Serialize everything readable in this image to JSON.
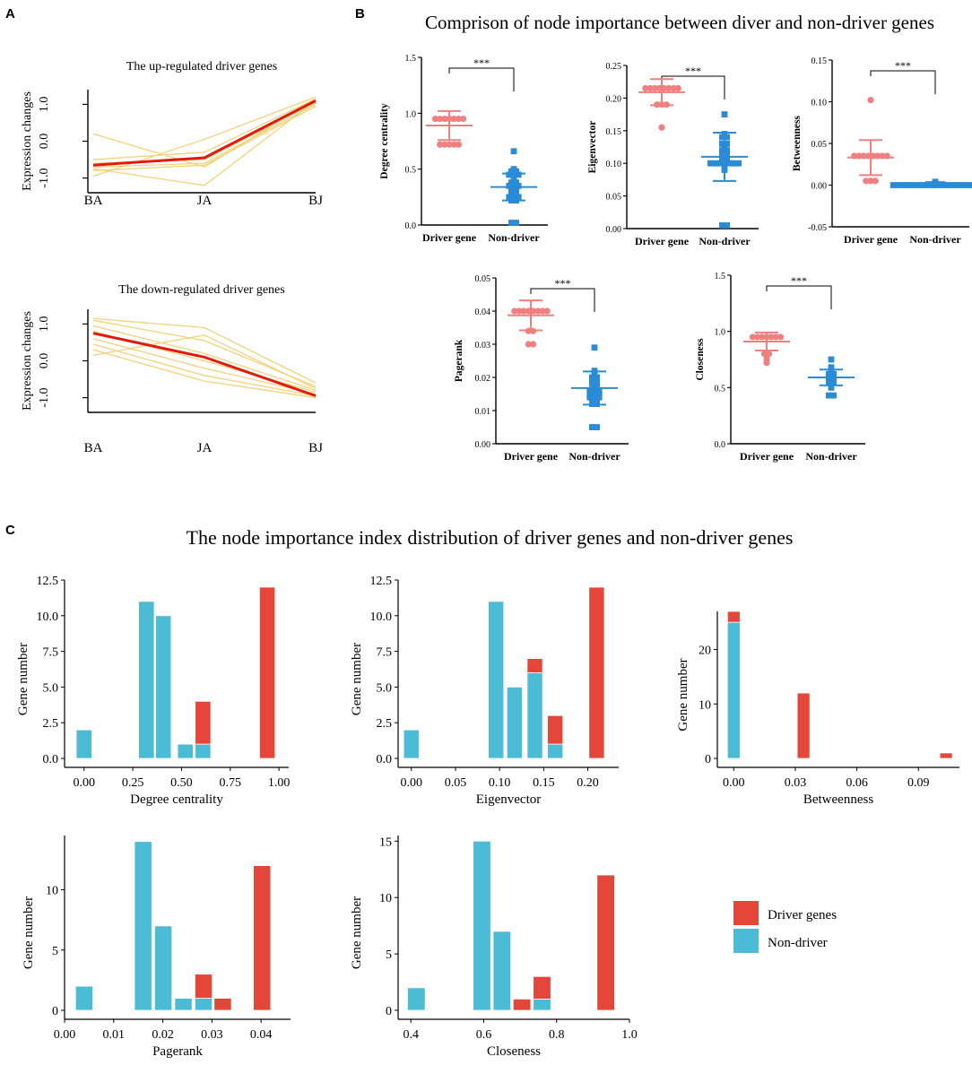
{
  "panels": {
    "A": {
      "letter": "A",
      "charts": [
        {
          "title": "The up-regulated driver genes",
          "ylabel": "Expression changes",
          "categories": [
            "BA",
            "JA",
            "BJ"
          ],
          "yticks": [
            -1.0,
            0.0,
            1.0
          ],
          "ytick_labels": [
            "-1.0",
            "0.0",
            "1.0"
          ],
          "ylim": [
            -1.4,
            1.4
          ],
          "mean": [
            -0.65,
            -0.45,
            1.1
          ],
          "genes": [
            [
              0.2,
              -0.7,
              1.15
            ],
            [
              -0.5,
              -0.3,
              1.15
            ],
            [
              -0.6,
              -0.5,
              1.05
            ],
            [
              -0.7,
              -0.6,
              1.0
            ],
            [
              -0.8,
              -0.65,
              0.95
            ],
            [
              -0.95,
              0.05,
              1.2
            ],
            [
              -0.75,
              -1.2,
              1.1
            ]
          ]
        },
        {
          "title": "The down-regulated driver genes",
          "ylabel": "Expression changes",
          "categories": [
            "BA",
            "JA",
            "BJ"
          ],
          "yticks": [
            -1.0,
            0.0,
            1.0
          ],
          "ytick_labels": [
            "-1.0",
            "0.0",
            "1.0"
          ],
          "ylim": [
            -1.4,
            1.4
          ],
          "mean": [
            0.75,
            0.1,
            -0.95
          ],
          "genes": [
            [
              1.15,
              0.9,
              -0.6
            ],
            [
              1.1,
              0.55,
              -0.7
            ],
            [
              0.95,
              0.2,
              -0.8
            ],
            [
              0.8,
              0.0,
              -0.85
            ],
            [
              0.6,
              -0.2,
              -0.9
            ],
            [
              0.45,
              -0.4,
              -0.95
            ],
            [
              0.3,
              -0.55,
              -1.0
            ],
            [
              0.15,
              0.7,
              -0.75
            ]
          ]
        }
      ]
    },
    "B": {
      "letter": "B",
      "title": "Comprison of node importance between diver and non-driver genes",
      "groups": [
        "Driver gene",
        "Non-driver"
      ],
      "signif": "***",
      "colors": {
        "driver": "#f08080",
        "nondriver": "#2a8bd6"
      },
      "plots": [
        {
          "ylabel": "Degree centrality",
          "ylim": [
            0,
            1.5
          ],
          "yticks": [
            0,
            0.5,
            1.0,
            1.5
          ],
          "ytick_labels": [
            "0.0",
            "0.5",
            "1.0",
            "1.5"
          ],
          "driver": {
            "mean": 0.89,
            "sd": 0.13,
            "points": [
              0.95,
              0.95,
              0.95,
              0.95,
              0.95,
              0.95,
              0.95,
              0.72,
              0.72,
              0.72,
              0.72,
              0.72
            ]
          },
          "nondriver": {
            "mean": 0.34,
            "sd": 0.12,
            "points": [
              0.66,
              0.5,
              0.48,
              0.48,
              0.45,
              0.45,
              0.45,
              0.4,
              0.38,
              0.38,
              0.35,
              0.35,
              0.35,
              0.32,
              0.3,
              0.3,
              0.28,
              0.28,
              0.25,
              0.25,
              0.25,
              0.22,
              0.22,
              0.02,
              0.02
            ]
          }
        },
        {
          "ylabel": "Eigenvector",
          "ylim": [
            0,
            0.25
          ],
          "yticks": [
            0,
            0.05,
            0.1,
            0.15,
            0.2,
            0.25
          ],
          "ytick_labels": [
            "0.00",
            "0.05",
            "0.10",
            "0.15",
            "0.20",
            "0.25"
          ],
          "driver": {
            "mean": 0.209,
            "sd": 0.02,
            "points": [
              0.215,
              0.215,
              0.215,
              0.215,
              0.215,
              0.215,
              0.215,
              0.215,
              0.19,
              0.19,
              0.19,
              0.155
            ]
          },
          "nondriver": {
            "mean": 0.11,
            "sd": 0.037,
            "points": [
              0.175,
              0.145,
              0.14,
              0.14,
              0.13,
              0.13,
              0.125,
              0.12,
              0.12,
              0.115,
              0.115,
              0.11,
              0.105,
              0.105,
              0.1,
              0.1,
              0.1,
              0.1,
              0.1,
              0.1,
              0.1,
              0.095,
              0.09,
              0.005,
              0.005
            ]
          }
        },
        {
          "ylabel": "Betweenness",
          "ylim": [
            -0.05,
            0.15
          ],
          "yticks": [
            -0.05,
            0,
            0.05,
            0.1,
            0.15
          ],
          "ytick_labels": [
            "-0.05",
            "0.00",
            "0.05",
            "0.10",
            "0.15"
          ],
          "driver": {
            "mean": 0.033,
            "sd": 0.021,
            "points": [
              0.102,
              0.035,
              0.035,
              0.035,
              0.035,
              0.035,
              0.035,
              0.035,
              0.035,
              0.005,
              0.005,
              0.005
            ]
          },
          "nondriver": {
            "mean": 0.001,
            "sd": 0.001,
            "points": [
              0.004,
              0.002,
              0.001,
              0.001,
              0.001,
              0.001,
              0.0,
              0.0,
              0.0,
              0.0,
              0.0,
              0.0,
              0.0,
              0.0,
              0.0,
              0.0,
              0.0,
              0.0,
              0.0,
              0.0,
              0.0,
              0.0,
              0.0,
              0.0,
              0.0
            ]
          }
        },
        {
          "ylabel": "Pagerank",
          "ylim": [
            0,
            0.05
          ],
          "yticks": [
            0,
            0.01,
            0.02,
            0.03,
            0.04,
            0.05
          ],
          "ytick_labels": [
            "0.00",
            "0.01",
            "0.02",
            "0.03",
            "0.04",
            "0.05"
          ],
          "driver": {
            "mean": 0.0387,
            "sd": 0.0045,
            "points": [
              0.04,
              0.04,
              0.04,
              0.04,
              0.04,
              0.04,
              0.04,
              0.04,
              0.034,
              0.034,
              0.03,
              0.03
            ]
          },
          "nondriver": {
            "mean": 0.0168,
            "sd": 0.005,
            "points": [
              0.029,
              0.022,
              0.021,
              0.02,
              0.02,
              0.019,
              0.019,
              0.018,
              0.018,
              0.017,
              0.016,
              0.016,
              0.016,
              0.015,
              0.015,
              0.015,
              0.014,
              0.014,
              0.014,
              0.013,
              0.013,
              0.012,
              0.012,
              0.005,
              0.005
            ]
          }
        },
        {
          "ylabel": "Closeness",
          "ylim": [
            0,
            1.5
          ],
          "yticks": [
            0,
            0.5,
            1.0,
            1.5
          ],
          "ytick_labels": [
            "0.0",
            "0.5",
            "1.0",
            "1.5"
          ],
          "driver": {
            "mean": 0.91,
            "sd": 0.08,
            "points": [
              0.95,
              0.95,
              0.95,
              0.95,
              0.95,
              0.95,
              0.95,
              0.8,
              0.8,
              0.78,
              0.75,
              0.72
            ]
          },
          "nondriver": {
            "mean": 0.59,
            "sd": 0.07,
            "points": [
              0.75,
              0.68,
              0.66,
              0.65,
              0.64,
              0.63,
              0.62,
              0.62,
              0.61,
              0.6,
              0.6,
              0.59,
              0.58,
              0.58,
              0.57,
              0.57,
              0.56,
              0.55,
              0.55,
              0.54,
              0.53,
              0.52,
              0.5,
              0.43,
              0.43
            ]
          }
        }
      ]
    },
    "C": {
      "letter": "C",
      "title": "The node importance index distribution of  driver genes and non-driver genes",
      "ylabel": "Gene number",
      "colors": {
        "driver": "#e5463a",
        "nondriver": "#4bbbd6"
      },
      "legend": {
        "driver": "Driver genes",
        "nondriver": "Non-driver"
      },
      "chart_data": [
        {
          "type": "bar",
          "xlabel": "Degree centrality",
          "xlim": [
            -0.1,
            1.05
          ],
          "ylim": [
            0,
            12.5
          ],
          "xticks": [
            0,
            0.25,
            0.5,
            0.75,
            1.0
          ],
          "xtick_labels": [
            "0.00",
            "0.25",
            "0.50",
            "0.75",
            "1.00"
          ],
          "yticks": [
            0,
            2.5,
            5,
            7.5,
            10,
            12.5
          ],
          "ytick_labels": [
            "0.0",
            "2.5",
            "5.0",
            "7.5",
            "10.0",
            "12.5"
          ],
          "binwidth": 0.087,
          "bins": [
            {
              "x": 0.0,
              "nondriver": 2,
              "driver": 0
            },
            {
              "x": 0.32,
              "nondriver": 11,
              "driver": 0
            },
            {
              "x": 0.407,
              "nondriver": 10,
              "driver": 0
            },
            {
              "x": 0.52,
              "nondriver": 1,
              "driver": 0
            },
            {
              "x": 0.61,
              "nondriver": 1,
              "driver": 3
            },
            {
              "x": 0.94,
              "nondriver": 0,
              "driver": 12
            }
          ]
        },
        {
          "type": "bar",
          "xlabel": "Eigenvector",
          "xlim": [
            -0.015,
            0.235
          ],
          "ylim": [
            0,
            12.5
          ],
          "xticks": [
            0,
            0.05,
            0.1,
            0.15,
            0.2
          ],
          "xtick_labels": [
            "0.00",
            "0.05",
            "0.10",
            "0.15",
            "0.20"
          ],
          "yticks": [
            0,
            2.5,
            5,
            7.5,
            10,
            12.5
          ],
          "ytick_labels": [
            "0.0",
            "2.5",
            "5.0",
            "7.5",
            "10.0",
            "12.5"
          ],
          "binwidth": 0.019,
          "bins": [
            {
              "x": 0.0,
              "nondriver": 2,
              "driver": 0
            },
            {
              "x": 0.096,
              "nondriver": 11,
              "driver": 0
            },
            {
              "x": 0.117,
              "nondriver": 5,
              "driver": 0
            },
            {
              "x": 0.14,
              "nondriver": 6,
              "driver": 1
            },
            {
              "x": 0.163,
              "nondriver": 1,
              "driver": 2
            },
            {
              "x": 0.21,
              "nondriver": 0,
              "driver": 12
            }
          ]
        },
        {
          "type": "bar",
          "xlabel": "Betweenness",
          "xlim": [
            -0.008,
            0.11
          ],
          "ylim": [
            0,
            27
          ],
          "xticks": [
            0,
            0.03,
            0.06,
            0.09
          ],
          "xtick_labels": [
            "0.00",
            "0.03",
            "0.06",
            "0.09"
          ],
          "yticks": [
            0,
            10,
            20
          ],
          "ytick_labels": [
            "0",
            "10",
            "20"
          ],
          "binwidth": 0.0068,
          "bins": [
            {
              "x": 0.0,
              "nondriver": 25,
              "driver": 2
            },
            {
              "x": 0.034,
              "nondriver": 0,
              "driver": 12
            },
            {
              "x": 0.1035,
              "nondriver": 0,
              "driver": 1
            }
          ]
        },
        {
          "type": "bar",
          "xlabel": "Pagerank",
          "xlim": [
            0,
            0.046
          ],
          "ylim": [
            0,
            14.5
          ],
          "xticks": [
            0,
            0.01,
            0.02,
            0.03,
            0.04
          ],
          "xtick_labels": [
            "0.00",
            "0.01",
            "0.02",
            "0.03",
            "0.04"
          ],
          "yticks": [
            0,
            5,
            10
          ],
          "ytick_labels": [
            "0",
            "5",
            "10"
          ],
          "binwidth": 0.0038,
          "bins": [
            {
              "x": 0.004,
              "nondriver": 2,
              "driver": 0
            },
            {
              "x": 0.016,
              "nondriver": 14,
              "driver": 0
            },
            {
              "x": 0.0201,
              "nondriver": 7,
              "driver": 0
            },
            {
              "x": 0.0242,
              "nondriver": 1,
              "driver": 0
            },
            {
              "x": 0.0283,
              "nondriver": 1,
              "driver": 2
            },
            {
              "x": 0.0322,
              "nondriver": 0,
              "driver": 1
            },
            {
              "x": 0.0402,
              "nondriver": 0,
              "driver": 12
            }
          ]
        },
        {
          "type": "bar",
          "xlabel": "Closeness",
          "xlim": [
            0.365,
            1.0
          ],
          "ylim": [
            0,
            15.5
          ],
          "xticks": [
            0.4,
            0.6,
            0.8,
            1.0
          ],
          "xtick_labels": [
            "0.4",
            "0.6",
            "0.8",
            "1.0"
          ],
          "yticks": [
            0,
            5,
            10,
            15
          ],
          "ytick_labels": [
            "0",
            "5",
            "10",
            "15"
          ],
          "binwidth": 0.052,
          "bins": [
            {
              "x": 0.415,
              "nondriver": 2,
              "driver": 0
            },
            {
              "x": 0.595,
              "nondriver": 15,
              "driver": 0
            },
            {
              "x": 0.65,
              "nondriver": 7,
              "driver": 0
            },
            {
              "x": 0.705,
              "nondriver": 0,
              "driver": 1
            },
            {
              "x": 0.76,
              "nondriver": 1,
              "driver": 2
            },
            {
              "x": 0.935,
              "nondriver": 0,
              "driver": 12
            }
          ]
        }
      ]
    }
  }
}
